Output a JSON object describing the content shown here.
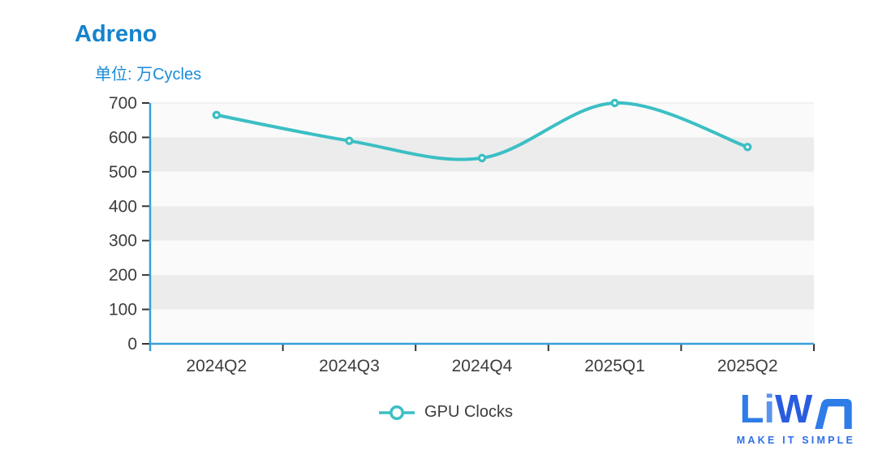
{
  "title": "Adreno",
  "subtitle": "单位: 万Cycles",
  "chart_data": {
    "type": "line",
    "title": "Adreno",
    "unit_label": "单位: 万Cycles",
    "categories": [
      "2024Q2",
      "2024Q3",
      "2024Q4",
      "2025Q1",
      "2025Q2"
    ],
    "series": [
      {
        "name": "GPU Clocks",
        "values": [
          665,
          590,
          540,
          700,
          572
        ],
        "smooth": true
      }
    ],
    "xlabel": "",
    "ylabel": "万Cycles",
    "ylim": [
      0,
      700
    ],
    "y_ticks": [
      0,
      100,
      200,
      300,
      400,
      500,
      600,
      700
    ],
    "grid": "alternating-horizontal-bands",
    "legend_position": "bottom-center"
  },
  "legend": {
    "label": "GPU Clocks"
  },
  "colors": {
    "title_blue": "#1583cd",
    "subtitle_blue": "#1a8cd8",
    "axis_line_blue": "#389fd9",
    "series_teal": "#3bbfc4",
    "band_light": "#fafafa",
    "band_dark": "#ececec",
    "tick_dark": "#333333",
    "axis_text": "#3d3d3d",
    "top_border": "#e9e9e9"
  },
  "logo": {
    "text": "LiWA",
    "tagline": "MAKE IT SIMPLE"
  }
}
